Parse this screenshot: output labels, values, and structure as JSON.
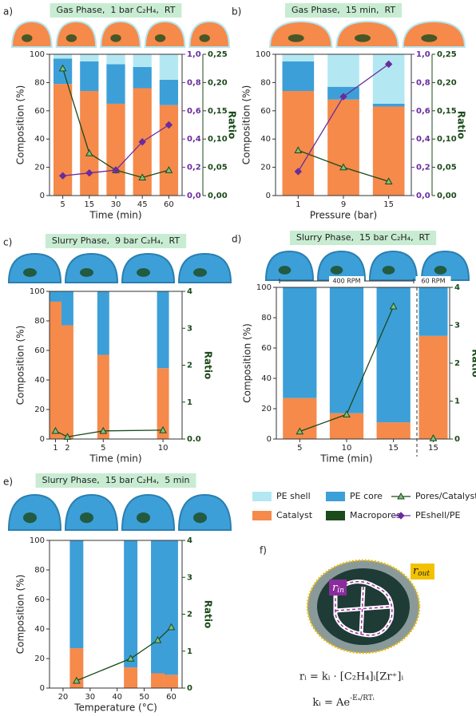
{
  "chart_data": [
    {
      "type": "bar",
      "label": "a)",
      "title": "Gas Phase,  1 bar C₂H₄,  RT",
      "categories": [
        "5",
        "15",
        "30",
        "45",
        "60"
      ],
      "xlabel": "Time (min)",
      "ylabel": "Composition (%)",
      "y2label": "Ratio",
      "ylim": [
        0,
        100
      ],
      "yticks": [
        0,
        20,
        40,
        60,
        80,
        100
      ],
      "y2lim": [
        0,
        1
      ],
      "y2ticks": [
        {
          "value": 0,
          "label": "0,0"
        },
        {
          "value": 0.2,
          "label": "0,2"
        },
        {
          "value": 0.4,
          "label": "0,4"
        },
        {
          "value": 0.6,
          "label": "0,6"
        },
        {
          "value": 0.8,
          "label": "0,8"
        },
        {
          "value": 1,
          "label": "1,0"
        }
      ],
      "y3lim": [
        0,
        0.25
      ],
      "y3ticks": [
        {
          "value": 0,
          "label": "0,00"
        },
        {
          "value": 0.05,
          "label": "0,05"
        },
        {
          "value": 0.1,
          "label": "0,10"
        },
        {
          "value": 0.15,
          "label": "0,15"
        },
        {
          "value": 0.2,
          "label": "0,20"
        },
        {
          "value": 0.25,
          "label": "0,25"
        }
      ],
      "series": [
        {
          "name": "Catalyst",
          "type": "bar",
          "color": "#f58a4b",
          "values": [
            79,
            74,
            65,
            76,
            64
          ]
        },
        {
          "name": "PE core",
          "type": "bar",
          "color": "#3d9fd8",
          "values": [
            18,
            21,
            28,
            15,
            18
          ]
        },
        {
          "name": "PE shell",
          "type": "bar",
          "color": "#b3e8f2",
          "values": [
            3,
            5,
            7,
            9,
            18
          ]
        },
        {
          "name": "Pores/Catalyst",
          "type": "line",
          "axis": "y3",
          "marker": "triangle",
          "color": "#1b4a1b",
          "values": [
            0.225,
            0.075,
            0.045,
            0.032,
            0.045
          ]
        },
        {
          "name": "PEshell/PE",
          "type": "line",
          "axis": "y2",
          "marker": "diamond",
          "color": "#6a2c9c",
          "values": [
            0.14,
            0.16,
            0.18,
            0.38,
            0.5
          ]
        }
      ]
    },
    {
      "type": "bar",
      "label": "b)",
      "title": "Gas Phase,  15 min,  RT",
      "categories": [
        "1",
        "9",
        "15"
      ],
      "xlabel": "Pressure (bar)",
      "ylabel": "Composition (%)",
      "y2label": "Ratio",
      "ylim": [
        0,
        100
      ],
      "yticks": [
        0,
        20,
        40,
        60,
        80,
        100
      ],
      "y2lim": [
        0,
        1
      ],
      "y2ticks": [
        {
          "value": 0,
          "label": "0,0"
        },
        {
          "value": 0.2,
          "label": "0,2"
        },
        {
          "value": 0.4,
          "label": "0,4"
        },
        {
          "value": 0.6,
          "label": "0,6"
        },
        {
          "value": 0.8,
          "label": "0,8"
        },
        {
          "value": 1,
          "label": "1,0"
        }
      ],
      "y3lim": [
        0,
        0.25
      ],
      "y3ticks": [
        {
          "value": 0,
          "label": "0,00"
        },
        {
          "value": 0.05,
          "label": "0,05"
        },
        {
          "value": 0.1,
          "label": "0,10"
        },
        {
          "value": 0.15,
          "label": "0,15"
        },
        {
          "value": 0.2,
          "label": "0,20"
        },
        {
          "value": 0.25,
          "label": "0,25"
        }
      ],
      "series": [
        {
          "type": "bar",
          "color": "#f58a4b",
          "values": [
            74,
            68,
            63
          ]
        },
        {
          "type": "bar",
          "color": "#3d9fd8",
          "values": [
            21,
            9,
            2
          ]
        },
        {
          "type": "bar",
          "color": "#b3e8f2",
          "values": [
            5,
            23,
            35
          ]
        },
        {
          "type": "line",
          "axis": "y3",
          "marker": "triangle",
          "color": "#1b4a1b",
          "values": [
            0.08,
            0.05,
            0.025
          ]
        },
        {
          "type": "line",
          "axis": "y2",
          "marker": "diamond",
          "color": "#6a2c9c",
          "values": [
            0.17,
            0.7,
            0.93
          ]
        }
      ]
    },
    {
      "type": "bar",
      "label": "c)",
      "title": "Slurry Phase,  9 bar C₂H₄,  RT",
      "x": [
        1,
        2,
        5,
        10
      ],
      "xlim": [
        0.5,
        11.6
      ],
      "xticks": [
        1,
        2,
        5,
        10
      ],
      "xlabel": "Time (min)",
      "ylabel": "Composition (%)",
      "y2label": "Ratio",
      "ylim": [
        0,
        100
      ],
      "yticks": [
        0,
        20,
        40,
        60,
        80,
        100
      ],
      "y2lim": [
        0,
        4
      ],
      "y2ticks": [
        {
          "value": 0,
          "label": "0.0"
        },
        1,
        2,
        3,
        4
      ],
      "series": [
        {
          "type": "bar",
          "color": "#f58a4b",
          "values": [
            93,
            77,
            57,
            48
          ]
        },
        {
          "type": "bar",
          "color": "#3d9fd8",
          "values": [
            7,
            23,
            43,
            52
          ]
        },
        {
          "type": "line",
          "axis": "y2",
          "marker": "triangle",
          "color": "#1b4a1b",
          "values": [
            0.22,
            0.06,
            0.22,
            0.24
          ]
        }
      ]
    },
    {
      "type": "bar",
      "label": "d)",
      "title": "Slurry Phase,  15 bar C₂H₄,  RT",
      "categories": [
        "5",
        "10",
        "15",
        "15"
      ],
      "groups": [
        "400 RPM",
        "60 RPM"
      ],
      "xlabel": "Time (min)",
      "ylabel": "Composition (%)",
      "y2label": "Ratio",
      "ylim": [
        0,
        100
      ],
      "yticks": [
        0,
        20,
        40,
        60,
        80,
        100
      ],
      "y2lim": [
        0,
        4
      ],
      "y2ticks": [
        0,
        1,
        2,
        3,
        4
      ],
      "series": [
        {
          "type": "bar",
          "color": "#f58a4b",
          "values": [
            27,
            17,
            11,
            68
          ]
        },
        {
          "type": "bar",
          "color": "#3d9fd8",
          "values": [
            73,
            83,
            89,
            32
          ]
        },
        {
          "type": "line",
          "axis": "y2",
          "marker": "triangle",
          "color": "#1b4a1b",
          "values": [
            0.2,
            0.65,
            3.5,
            0.02
          ]
        }
      ]
    },
    {
      "type": "bar",
      "label": "e)",
      "title": "Slurry Phase,  15 bar C₂H₄,  5 min",
      "x": [
        25,
        45,
        55,
        60
      ],
      "xlim": [
        15,
        64
      ],
      "xticks": [
        20,
        30,
        40,
        50,
        60
      ],
      "xlabel": "Temperature (°C)",
      "ylabel": "Composition (%)",
      "y2label": "Ratio",
      "ylim": [
        0,
        100
      ],
      "yticks": [
        0,
        20,
        40,
        60,
        80,
        100
      ],
      "y2lim": [
        0,
        4
      ],
      "y2ticks": [
        0,
        1,
        2,
        3,
        4
      ],
      "series": [
        {
          "type": "bar",
          "color": "#f58a4b",
          "values": [
            27,
            14,
            10,
            9
          ]
        },
        {
          "type": "bar",
          "color": "#3d9fd8",
          "values": [
            73,
            86,
            90,
            91
          ]
        },
        {
          "type": "line",
          "axis": "y2",
          "marker": "triangle",
          "color": "#1b4a1b",
          "values": [
            0.2,
            0.8,
            1.3,
            1.65
          ]
        }
      ]
    }
  ],
  "macropores": {
    "name": "Macropores",
    "color": "#1b4a1b"
  },
  "panel_f": {
    "label": "f)",
    "r_in": "r",
    "r_in_sub": "in",
    "r_out": "r",
    "r_out_sub": "out",
    "formula_1": "rᵢ = kᵢ · [C₂H₄]ᵢ[Zr⁺]ᵢ",
    "formula_2": "kᵢ = Ae",
    "formula_2_exp": "-Eₐ/RTᵢ"
  }
}
